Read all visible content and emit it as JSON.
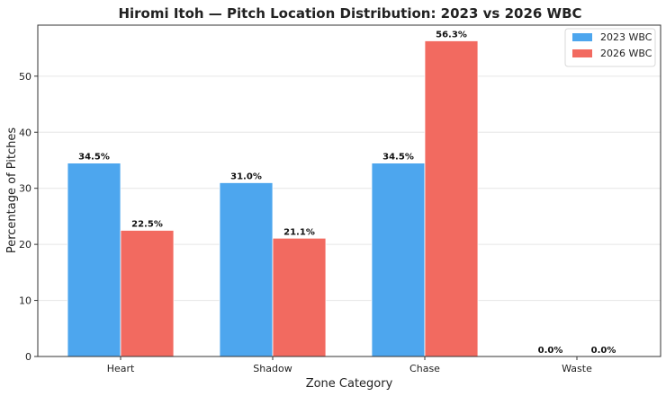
{
  "chart_data": {
    "type": "bar",
    "title": "Hiromi Itoh — Pitch Location Distribution: 2023 vs 2026 WBC",
    "xlabel": "Zone Category",
    "ylabel": "Percentage of Pitches",
    "categories": [
      "Heart",
      "Shadow",
      "Chase",
      "Waste"
    ],
    "series": [
      {
        "name": "2023 WBC",
        "values": [
          34.5,
          31.0,
          34.5,
          0.0
        ],
        "labels": [
          "34.5%",
          "31.0%",
          "34.5%",
          "0.0%"
        ],
        "color": "#4da6ee"
      },
      {
        "name": "2026 WBC",
        "values": [
          22.5,
          21.1,
          56.3,
          0.0
        ],
        "labels": [
          "22.5%",
          "21.1%",
          "56.3%",
          "0.0%"
        ],
        "color": "#f26a60"
      }
    ],
    "ylim": [
      0,
      59.1
    ],
    "yticks": [
      0,
      10,
      20,
      30,
      40,
      50
    ],
    "grid": true,
    "legend_position": "top-right"
  }
}
